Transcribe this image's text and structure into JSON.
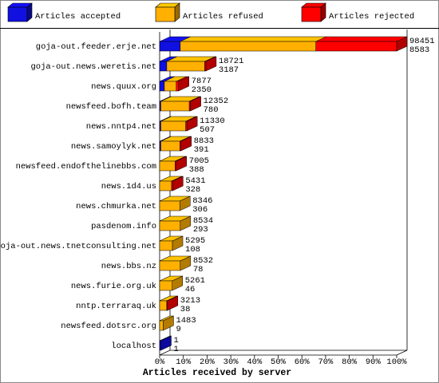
{
  "chart_data": {
    "type": "stacked-bar-3d",
    "series": [
      {
        "name": "Articles accepted",
        "color": "#1010e0",
        "values": [
          8.7,
          3,
          2,
          0.5,
          0.5,
          0.5,
          0,
          0,
          0,
          0,
          0,
          0,
          0,
          0,
          0,
          0.5
        ]
      },
      {
        "name": "Articles refused",
        "color": "#ffb000",
        "values": [
          57.2,
          16,
          5,
          12,
          10.5,
          8,
          6.5,
          5,
          8.5,
          8.7,
          5.4,
          8.7,
          5.3,
          3,
          1.5,
          0
        ]
      },
      {
        "name": "Articles rejected",
        "color": "#ff0000",
        "values": [
          34.1,
          0.5,
          1,
          0.5,
          0.5,
          0.5,
          0.5,
          0.5,
          0,
          0,
          0,
          0,
          0,
          0.3,
          0,
          0
        ]
      }
    ],
    "categories": [
      "goja-out.feeder.erje.net",
      "goja-out.news.weretis.net",
      "news.quux.org",
      "newsfeed.bofh.team",
      "news.nntp4.net",
      "news.samoylyk.net",
      "newsfeed.endofthelinebbs.com",
      "news.1d4.us",
      "news.chmurka.net",
      "pasdenom.info",
      "goja-out.news.tnetconsulting.net",
      "news.bbs.nz",
      "news.furie.org.uk",
      "nntp.terraraq.uk",
      "newsfeed.dotsrc.org",
      "localhost"
    ],
    "row_totals": [
      98451,
      18721,
      7877,
      12352,
      11330,
      8833,
      7005,
      5431,
      8346,
      8534,
      5295,
      8532,
      5261,
      3213,
      1483,
      1
    ],
    "row_counts": [
      8583,
      3187,
      2350,
      780,
      507,
      391,
      388,
      328,
      306,
      293,
      108,
      78,
      46,
      38,
      9,
      1
    ],
    "xlim": [
      0,
      100
    ],
    "xticks": [
      {
        "value": 0,
        "label": "0%"
      },
      {
        "value": 10,
        "label": "10%"
      },
      {
        "value": 20,
        "label": "20%"
      },
      {
        "value": 30,
        "label": "30%"
      },
      {
        "value": 40,
        "label": "40%"
      },
      {
        "value": 50,
        "label": "50%"
      },
      {
        "value": 60,
        "label": "60%"
      },
      {
        "value": 70,
        "label": "70%"
      },
      {
        "value": 80,
        "label": "80%"
      },
      {
        "value": 90,
        "label": "90%"
      },
      {
        "value": 100,
        "label": "100%"
      }
    ],
    "xlabel": "Articles received by server"
  }
}
